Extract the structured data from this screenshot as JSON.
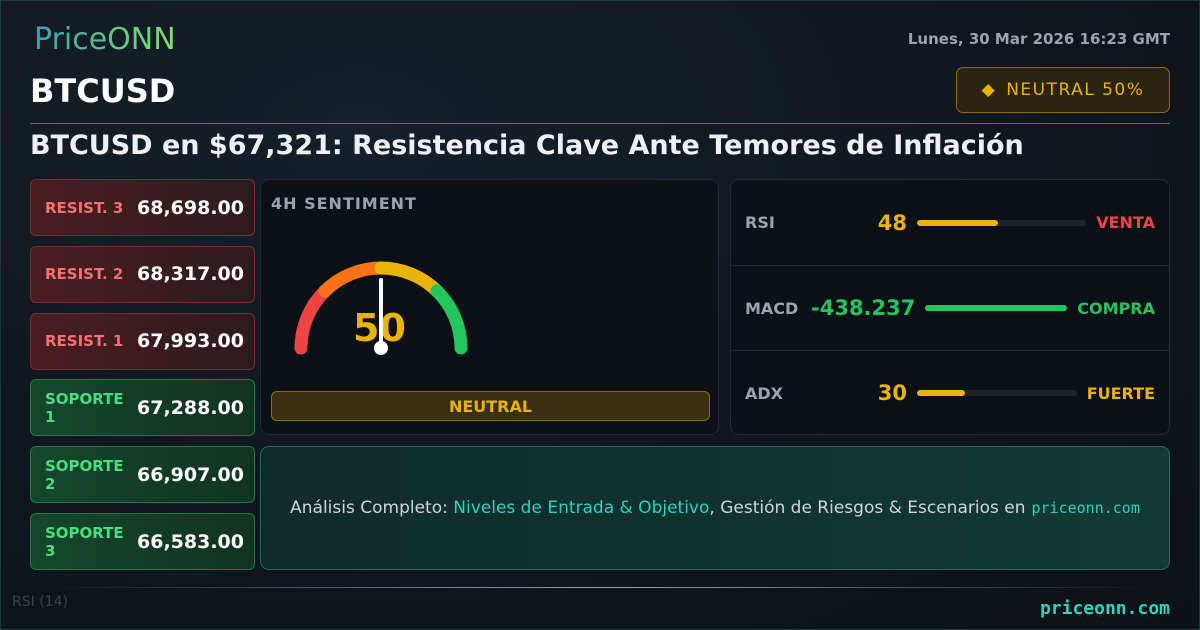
{
  "brand": {
    "logo": "PriceONN",
    "footer_site": "priceonn.com"
  },
  "header": {
    "date": "Lunes, 30 Mar 2026 16:23 GMT",
    "symbol": "BTCUSD",
    "badge": {
      "icon": "diamond-icon",
      "label": "NEUTRAL 50%"
    }
  },
  "headline": "BTCUSD en $67,321: Resistencia Clave Ante Temores de Inflación",
  "levels": [
    {
      "label": "RESIST. 3",
      "value": "68,698.00",
      "type": "resistance"
    },
    {
      "label": "RESIST. 2",
      "value": "68,317.00",
      "type": "resistance"
    },
    {
      "label": "RESIST. 1",
      "value": "67,993.00",
      "type": "resistance"
    },
    {
      "label": "SOPORTE 1",
      "value": "67,288.00",
      "type": "support"
    },
    {
      "label": "SOPORTE 2",
      "value": "66,907.00",
      "type": "support"
    },
    {
      "label": "SOPORTE 3",
      "value": "66,583.00",
      "type": "support"
    }
  ],
  "sentiment": {
    "title": "4H SENTIMENT",
    "value": "50",
    "gauge_percent": 50,
    "label": "NEUTRAL"
  },
  "indicators": [
    {
      "name": "RSI",
      "value": "48",
      "fill_percent": 48,
      "signal": "VENTA",
      "value_color": "#eab308",
      "bar_color": "#eab308",
      "signal_color": "#ef4444"
    },
    {
      "name": "MACD",
      "value": "-438.237",
      "fill_percent": 100,
      "signal": "COMPRA",
      "value_color": "#22c55e",
      "bar_color": "#22c55e",
      "signal_color": "#22c55e"
    },
    {
      "name": "ADX",
      "value": "30",
      "fill_percent": 30,
      "signal": "FUERTE",
      "value_color": "#eab308",
      "bar_color": "#eab308",
      "signal_color": "#eab308"
    }
  ],
  "cta": {
    "prefix": "Análisis Completo: ",
    "highlight": "Niveles de Entrada & Objetivo",
    "suffix": ", Gestión de Riesgos & Escenarios en",
    "site": "priceonn.com"
  },
  "background": {
    "rsi_label": "RSI (14)"
  },
  "colors": {
    "accent": "#2dd4bf",
    "neutral": "#eab308",
    "buy": "#22c55e",
    "sell": "#ef4444"
  }
}
